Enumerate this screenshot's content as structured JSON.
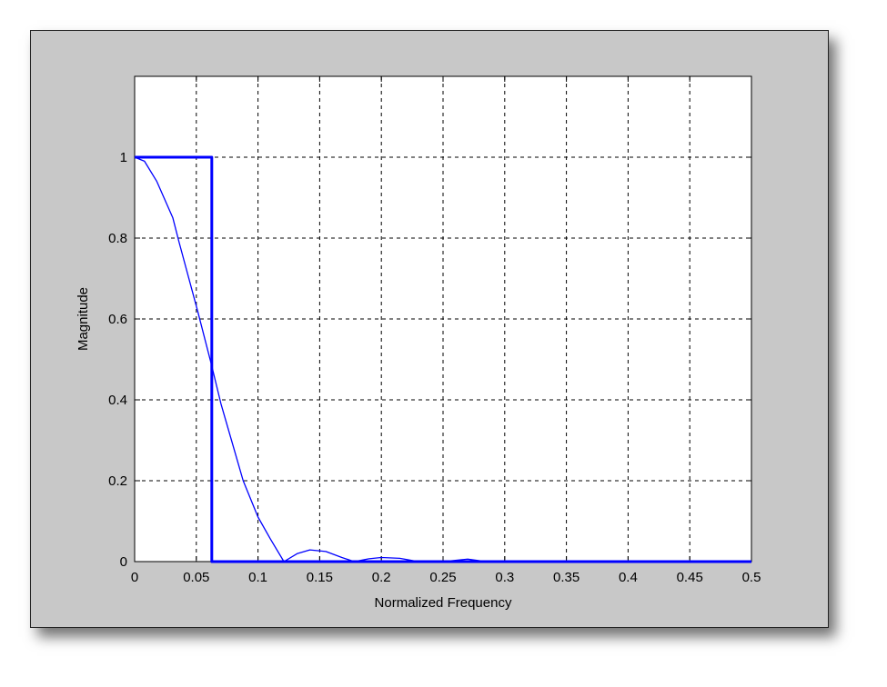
{
  "chart_data": {
    "type": "line",
    "title": "",
    "xlabel": "Normalized Frequency",
    "ylabel": "Magnitude",
    "xlim": [
      0,
      0.5
    ],
    "ylim": [
      0,
      1.2
    ],
    "grid": true,
    "xticks": [
      "0",
      "0.05",
      "0.1",
      "0.15",
      "0.2",
      "0.25",
      "0.3",
      "0.35",
      "0.4",
      "0.45",
      "0.5"
    ],
    "yticks": [
      "0",
      "0.2",
      "0.4",
      "0.6",
      "0.8",
      "1"
    ],
    "series": [
      {
        "color": "#0000ff",
        "line_width": "thick",
        "x": [
          0,
          0.0625,
          0.0625,
          0.5
        ],
        "y": [
          1,
          1,
          0,
          0
        ]
      },
      {
        "color": "#0000ff",
        "line_width": "thin",
        "x": [
          0,
          0.008,
          0.018,
          0.031,
          0.036,
          0.051,
          0.062,
          0.07,
          0.088,
          0.1,
          0.11,
          0.121,
          0.132,
          0.142,
          0.155,
          0.168,
          0.178,
          0.19,
          0.2,
          0.215,
          0.23,
          0.25,
          0.27,
          0.285,
          0.3,
          0.4,
          0.5
        ],
        "y": [
          1,
          0.99,
          0.94,
          0.85,
          0.79,
          0.62,
          0.49,
          0.39,
          0.2,
          0.11,
          0.056,
          0.0,
          0.02,
          0.029,
          0.025,
          0.01,
          0.0,
          0.007,
          0.01,
          0.008,
          0.0,
          0.0,
          0.006,
          0.0,
          0.0,
          0.0,
          0.0
        ]
      }
    ]
  }
}
